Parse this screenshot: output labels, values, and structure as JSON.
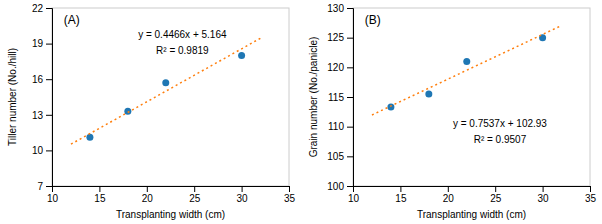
{
  "chart_data": [
    {
      "type": "scatter",
      "xlabel": "Transplanting width (cm)",
      "ylabel": "Tiller number (No./hill)",
      "annotations": [
        "(A)",
        "y = 0.4466x + 5.164",
        "R² = 0.9819"
      ],
      "series": [
        {
          "type": "scatter",
          "marker": "circle",
          "x": [
            14,
            18,
            22,
            30
          ],
          "values": [
            11.1,
            13.3,
            15.7,
            18.0
          ]
        },
        {
          "type": "line",
          "line_style": "dotted",
          "x": [
            12.0,
            32.0
          ],
          "values": [
            10.5232,
            19.4552
          ]
        }
      ],
      "xlim": [
        10,
        35
      ],
      "xticks": [
        10,
        15,
        20,
        25,
        30,
        35
      ],
      "ylim": [
        7,
        22
      ],
      "yticks": [
        7,
        10,
        13,
        16,
        19,
        22
      ],
      "grid": false
    },
    {
      "type": "scatter",
      "xlabel": "Transplanting width (cm)",
      "ylabel": "Grain number (No./panicle)",
      "annotations": [
        "(B)",
        "y = 0.7537x + 102.93",
        "R² = 0.9507"
      ],
      "series": [
        {
          "type": "scatter",
          "marker": "circle",
          "x": [
            14,
            18,
            22,
            30
          ],
          "values": [
            113.3,
            115.5,
            121.0,
            125.0
          ]
        },
        {
          "type": "line",
          "line_style": "dotted",
          "x": [
            12.0,
            32.0
          ],
          "values": [
            111.9744,
            127.0484
          ]
        }
      ],
      "xlim": [
        10,
        35
      ],
      "xticks": [
        10,
        15,
        20,
        25,
        30,
        35
      ],
      "ylim": [
        100,
        130
      ],
      "yticks": [
        100,
        105,
        110,
        115,
        120,
        125,
        130
      ],
      "grid": false
    }
  ]
}
